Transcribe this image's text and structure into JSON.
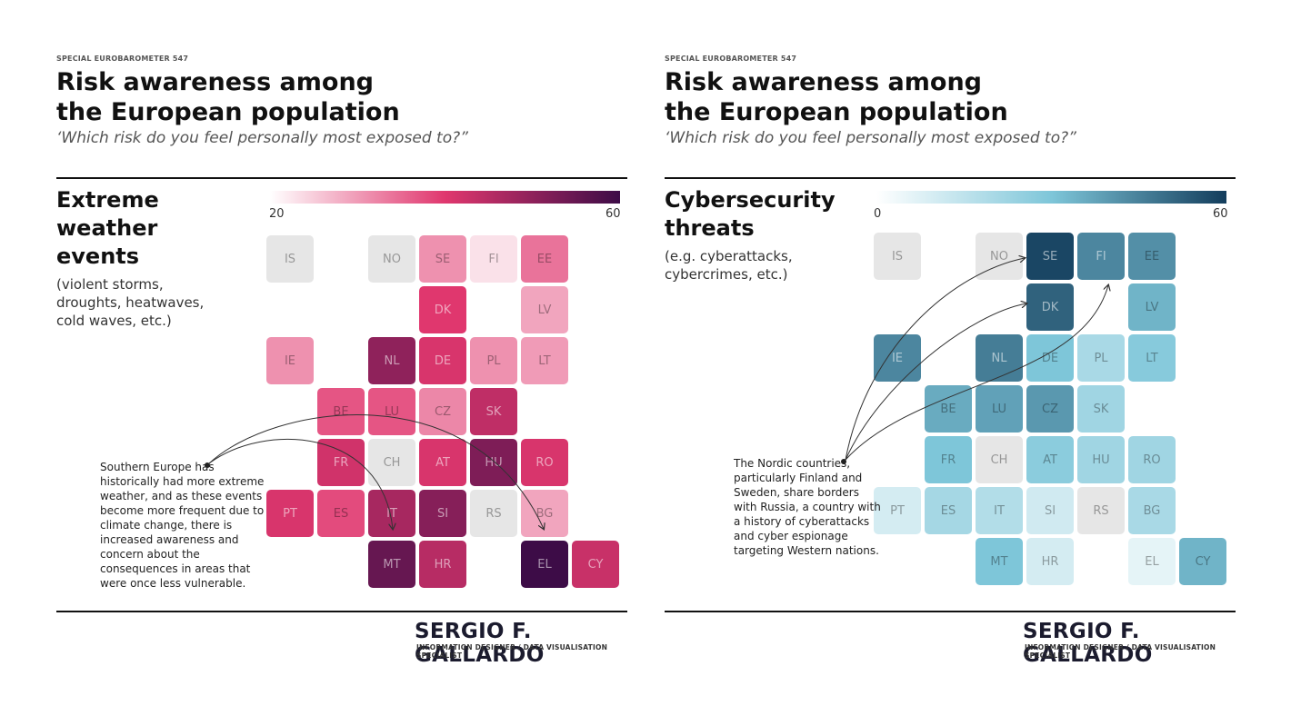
{
  "charts": [
    {
      "eyebrow": "SPECIAL EUROBAROMETER 547",
      "title_line1": "Risk awareness among",
      "title_line2": "the European population",
      "question": "‘Which risk do you feel personally most exposed to?”",
      "category_lines": [
        "Extreme",
        "weather",
        "events"
      ],
      "description_lines": [
        "(violent storms,",
        "droughts, heatwaves,",
        "cold waves, etc.)"
      ],
      "legend_min": "20",
      "legend_max": "60",
      "annotation_lines": [
        "Southern Europe has",
        "historically had more extreme",
        "weather, and as these events",
        "become more frequent due to",
        "climate change, there is",
        "increased awareness and",
        "concern about the",
        "consequences in areas that",
        "were once less vulnerable."
      ],
      "colors": {
        "low": "#ffffff",
        "mid": "#e0376e",
        "high": "#3d0c47"
      },
      "brand": "SERGIO F. GALLARDO",
      "brand_sub": "INFORMATION DESIGNER / DATA VISUALISATION SPECIALIST"
    },
    {
      "eyebrow": "SPECIAL EUROBAROMETER 547",
      "title_line1": "Risk awareness among",
      "title_line2": "the European population",
      "question": "‘Which risk do you feel personally most exposed to?”",
      "category_lines": [
        "Cybersecurity",
        "threats"
      ],
      "description_lines": [
        "(e.g. cyberattacks,",
        "cybercrimes, etc.)"
      ],
      "legend_min": "0",
      "legend_max": "60",
      "annotation_lines": [
        "The Nordic countries,",
        "particularly Finland and",
        "Sweden, share borders",
        "with Russia, a country with",
        "a history of cyberattacks",
        "and cyber espionage",
        "targeting Western nations."
      ],
      "colors": {
        "low": "#ffffff",
        "mid": "#7ec6d9",
        "high": "#133d5c"
      },
      "brand": "SERGIO F. GALLARDO",
      "brand_sub": "INFORMATION DESIGNER / DATA VISUALISATION SPECIALIST"
    }
  ],
  "chart_data": [
    {
      "type": "heatmap",
      "title": "Extreme weather events",
      "value_range": [
        20,
        60
      ],
      "tiles": [
        {
          "code": "IS",
          "row": 0,
          "col": 0,
          "value": null
        },
        {
          "code": "NO",
          "row": 0,
          "col": 2,
          "value": null
        },
        {
          "code": "SE",
          "row": 0,
          "col": 3,
          "value": 31
        },
        {
          "code": "FI",
          "row": 0,
          "col": 4,
          "value": 23
        },
        {
          "code": "EE",
          "row": 0,
          "col": 5,
          "value": 34
        },
        {
          "code": "DK",
          "row": 1,
          "col": 3,
          "value": 40
        },
        {
          "code": "LV",
          "row": 1,
          "col": 5,
          "value": 29
        },
        {
          "code": "IE",
          "row": 2,
          "col": 0,
          "value": 31
        },
        {
          "code": "NL",
          "row": 2,
          "col": 2,
          "value": 50
        },
        {
          "code": "DE",
          "row": 2,
          "col": 3,
          "value": 41
        },
        {
          "code": "PL",
          "row": 2,
          "col": 4,
          "value": 31
        },
        {
          "code": "LT",
          "row": 2,
          "col": 5,
          "value": 30
        },
        {
          "code": "BE",
          "row": 3,
          "col": 1,
          "value": 37
        },
        {
          "code": "LU",
          "row": 3,
          "col": 2,
          "value": 37
        },
        {
          "code": "CZ",
          "row": 3,
          "col": 3,
          "value": 32
        },
        {
          "code": "SK",
          "row": 3,
          "col": 4,
          "value": 44
        },
        {
          "code": "FR",
          "row": 4,
          "col": 1,
          "value": 42
        },
        {
          "code": "CH",
          "row": 4,
          "col": 2,
          "value": null
        },
        {
          "code": "AT",
          "row": 4,
          "col": 3,
          "value": 41
        },
        {
          "code": "HU",
          "row": 4,
          "col": 4,
          "value": 52
        },
        {
          "code": "RO",
          "row": 4,
          "col": 5,
          "value": 41
        },
        {
          "code": "PT",
          "row": 5,
          "col": 0,
          "value": 41
        },
        {
          "code": "ES",
          "row": 5,
          "col": 1,
          "value": 38
        },
        {
          "code": "IT",
          "row": 5,
          "col": 2,
          "value": 47
        },
        {
          "code": "SI",
          "row": 5,
          "col": 3,
          "value": 51
        },
        {
          "code": "RS",
          "row": 5,
          "col": 4,
          "value": null
        },
        {
          "code": "BG",
          "row": 5,
          "col": 5,
          "value": 29
        },
        {
          "code": "MT",
          "row": 6,
          "col": 2,
          "value": 55
        },
        {
          "code": "HR",
          "row": 6,
          "col": 3,
          "value": 45
        },
        {
          "code": "EL",
          "row": 6,
          "col": 5,
          "value": 60
        },
        {
          "code": "CY",
          "row": 6,
          "col": 6,
          "value": 43
        }
      ]
    },
    {
      "type": "heatmap",
      "title": "Cybersecurity threats",
      "value_range": [
        0,
        60
      ],
      "tiles": [
        {
          "code": "IS",
          "row": 0,
          "col": 0,
          "value": null
        },
        {
          "code": "NO",
          "row": 0,
          "col": 2,
          "value": null
        },
        {
          "code": "SE",
          "row": 0,
          "col": 3,
          "value": 58
        },
        {
          "code": "FI",
          "row": 0,
          "col": 4,
          "value": 44
        },
        {
          "code": "EE",
          "row": 0,
          "col": 5,
          "value": 42
        },
        {
          "code": "DK",
          "row": 1,
          "col": 3,
          "value": 52
        },
        {
          "code": "LV",
          "row": 1,
          "col": 5,
          "value": 34
        },
        {
          "code": "IE",
          "row": 2,
          "col": 0,
          "value": 44
        },
        {
          "code": "NL",
          "row": 2,
          "col": 2,
          "value": 46
        },
        {
          "code": "DE",
          "row": 2,
          "col": 3,
          "value": 30
        },
        {
          "code": "PL",
          "row": 2,
          "col": 4,
          "value": 20
        },
        {
          "code": "LT",
          "row": 2,
          "col": 5,
          "value": 28
        },
        {
          "code": "BE",
          "row": 3,
          "col": 1,
          "value": 36
        },
        {
          "code": "LU",
          "row": 3,
          "col": 2,
          "value": 38
        },
        {
          "code": "CZ",
          "row": 3,
          "col": 3,
          "value": 40
        },
        {
          "code": "SK",
          "row": 3,
          "col": 4,
          "value": 22
        },
        {
          "code": "FR",
          "row": 4,
          "col": 1,
          "value": 30
        },
        {
          "code": "CH",
          "row": 4,
          "col": 2,
          "value": null
        },
        {
          "code": "AT",
          "row": 4,
          "col": 3,
          "value": 27
        },
        {
          "code": "HU",
          "row": 4,
          "col": 4,
          "value": 22
        },
        {
          "code": "RO",
          "row": 4,
          "col": 5,
          "value": 22
        },
        {
          "code": "PT",
          "row": 5,
          "col": 0,
          "value": 10
        },
        {
          "code": "ES",
          "row": 5,
          "col": 1,
          "value": 21
        },
        {
          "code": "IT",
          "row": 5,
          "col": 2,
          "value": 18
        },
        {
          "code": "SI",
          "row": 5,
          "col": 3,
          "value": 11
        },
        {
          "code": "RS",
          "row": 5,
          "col": 4,
          "value": null
        },
        {
          "code": "BG",
          "row": 5,
          "col": 5,
          "value": 20
        },
        {
          "code": "MT",
          "row": 6,
          "col": 2,
          "value": 30
        },
        {
          "code": "HR",
          "row": 6,
          "col": 3,
          "value": 10
        },
        {
          "code": "EL",
          "row": 6,
          "col": 5,
          "value": 6
        },
        {
          "code": "CY",
          "row": 6,
          "col": 6,
          "value": 34
        }
      ]
    }
  ]
}
